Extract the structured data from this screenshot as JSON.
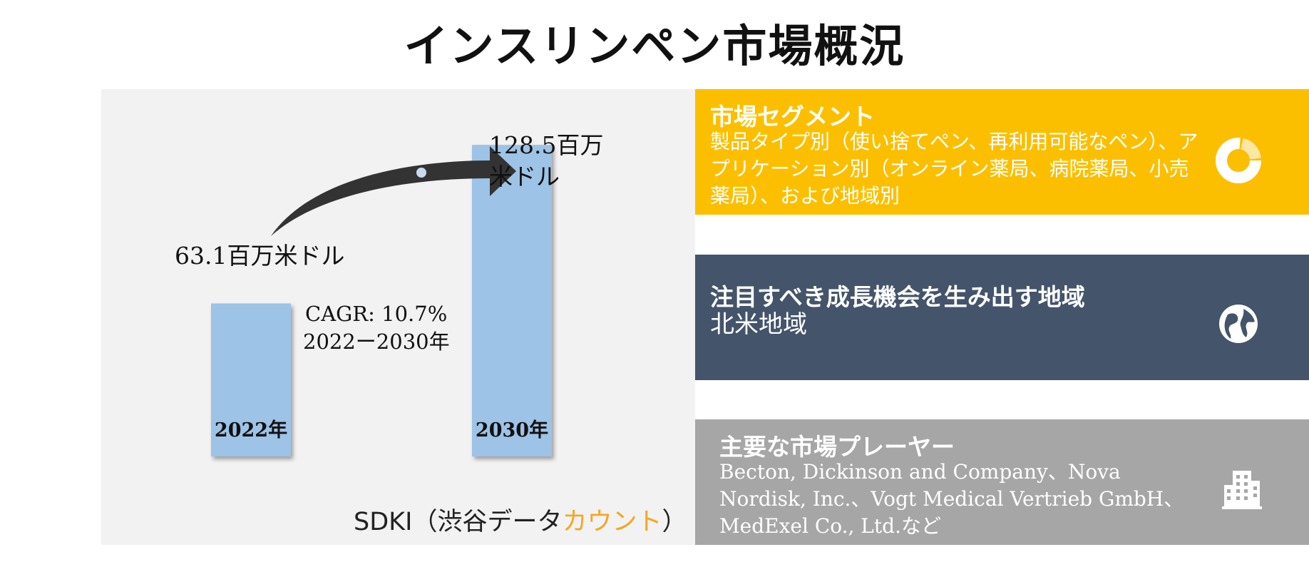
{
  "title": "インスリンペン市場概況",
  "chart_data": {
    "type": "bar",
    "categories": [
      "2022年",
      "2030年"
    ],
    "values": [
      63.1,
      128.5
    ],
    "value_labels": [
      "63.1百万米ドル",
      "128.5百万米ドル"
    ],
    "value_label_2030_lines": [
      "128.5百万",
      "米ドル"
    ],
    "cagr_line1": "CAGR: 10.7%",
    "cagr_line2": "2022ー2030年",
    "bar_color": "#9dc3e6"
  },
  "source": {
    "prefix": "SDKI（渋谷データ",
    "accent": "カウント",
    "suffix": "）"
  },
  "cards": {
    "segment": {
      "heading": "市場セグメント",
      "body": "製品タイプ別（使い捨てペン、再利用可能なペン）、アプリケーション別（オンライン薬局、病院薬局、小売薬局）、および地域別",
      "icon": "donut-chart-icon",
      "color": "#fbbf00"
    },
    "region": {
      "heading": "注目すべき成長機会を生み出す地域",
      "body": "北米地域",
      "icon": "globe-icon",
      "color": "#44546a"
    },
    "players": {
      "heading": "主要な市場プレーヤー",
      "body": "Becton, Dickinson and Company、Nova Nordisk, Inc.、Vogt Medical Vertrieb GmbH、MedExel Co., Ltd.など",
      "icon": "building-icon",
      "color": "#a6a6a6"
    }
  }
}
